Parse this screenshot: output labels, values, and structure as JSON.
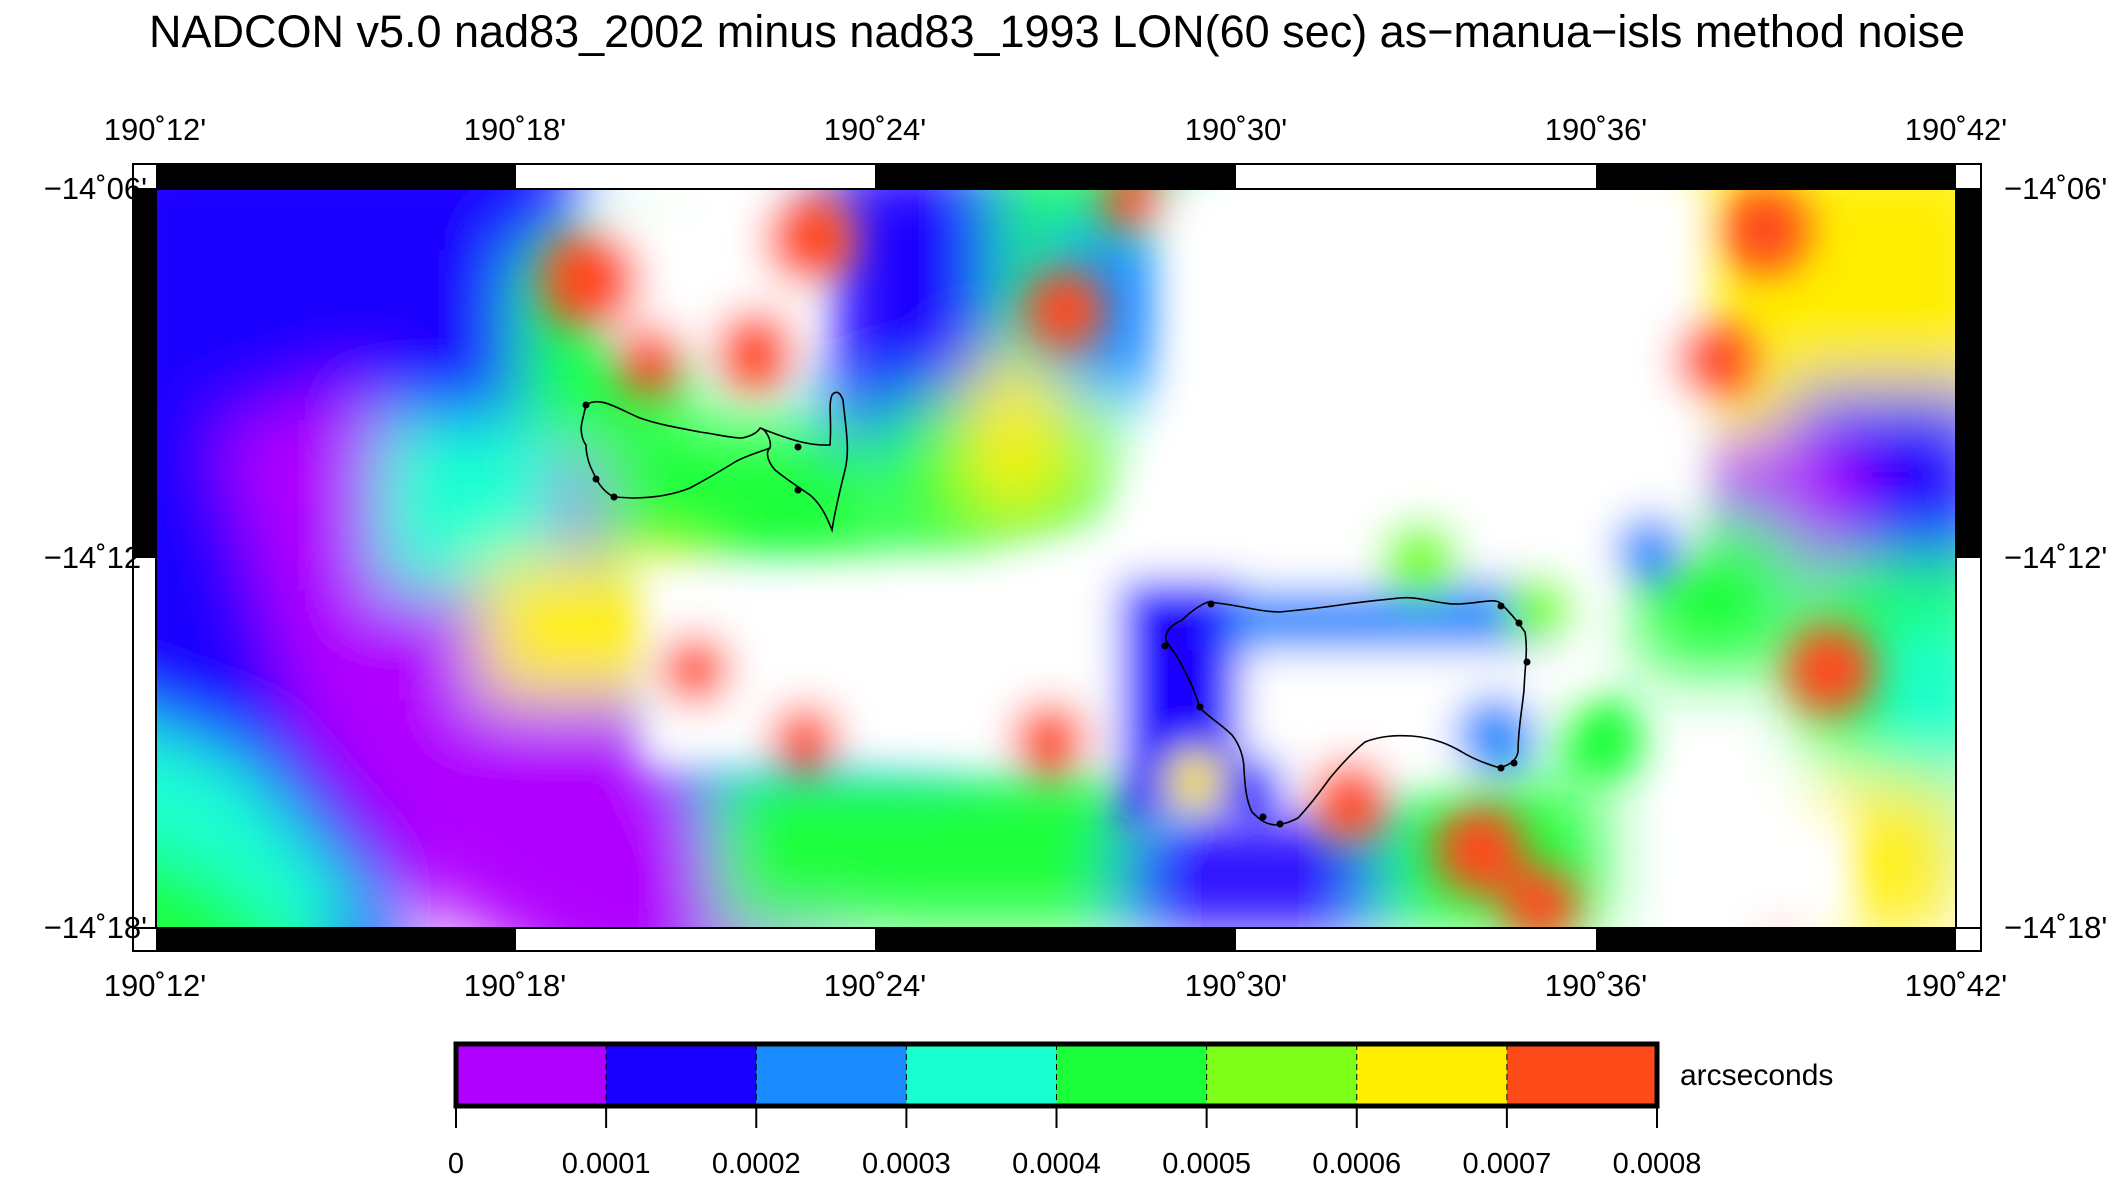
{
  "title": "NADCON v5.0 nad83_2002 minus nad83_1993 LON(60 sec) as−manua−isls method noise",
  "map": {
    "lon_labels": [
      "190˚12'",
      "190˚18'",
      "190˚24'",
      "190˚30'",
      "190˚36'",
      "190˚42'"
    ],
    "lat_labels": [
      "−14˚06'",
      "−14˚12'",
      "−14˚18'"
    ],
    "lon_range_deg": [
      190.2,
      190.7
    ],
    "lat_range_deg": [
      -14.3,
      -14.1
    ],
    "projection": "Mercator",
    "field": "NADCON v5.0 LON noise, nad83_2002 minus nad83_1993",
    "high_noise_regions": "white areas exceed 0.0008 arcseconds"
  },
  "colorbar": {
    "unit_label": "arcseconds",
    "tick_labels": [
      "0",
      "0.0001",
      "0.0002",
      "0.0003",
      "0.0004",
      "0.0005",
      "0.0006",
      "0.0007",
      "0.0008"
    ],
    "colors": [
      "#b000ff",
      "#1a00ff",
      "#1a8cff",
      "#1affd1",
      "#1aff3a",
      "#7dff1a",
      "#ffee00",
      "#ff4a1a"
    ]
  },
  "colors": {
    "purple": "#b000ff",
    "blue": "#1a00ff",
    "sky": "#1a8cff",
    "cyan": "#1affd1",
    "green": "#1aff3a",
    "lime": "#7dff1a",
    "yellow": "#ffee00",
    "orange": "#ff4a1a",
    "over": "#ffffff",
    "coastline": "#000000"
  }
}
